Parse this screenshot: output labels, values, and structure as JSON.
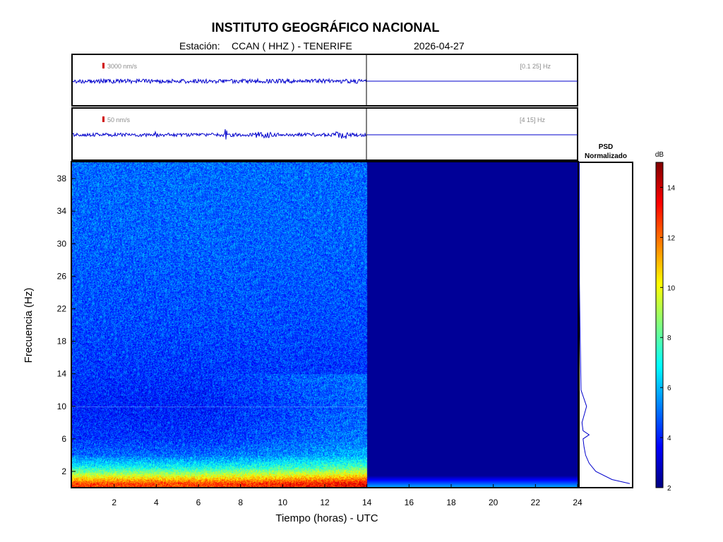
{
  "header": {
    "title": "INSTITUTO GEOGRÁFICO NACIONAL",
    "station_prefix": "Estación:",
    "station": "CCAN ( HHZ ) - TENERIFE",
    "date": "2026-04-27"
  },
  "traces": [
    {
      "scale_label": "3000 nm/s",
      "band_label": "[0.1 25] Hz"
    },
    {
      "scale_label": "50 nm/s",
      "band_label": "[4 15] Hz"
    }
  ],
  "psd": {
    "title_line1": "PSD",
    "title_line2": "Normalizado"
  },
  "colorbar": {
    "unit": "dB",
    "min": 2,
    "max": 15,
    "ticks": [
      "2",
      "4",
      "6",
      "8",
      "10",
      "12",
      "14"
    ]
  },
  "chart_data": {
    "type": "heatmap",
    "xlabel": "Tiempo (horas) - UTC",
    "ylabel": "Frecuencia  (Hz)",
    "xlim": [
      0,
      24
    ],
    "ylim": [
      0,
      40
    ],
    "x_ticks": [
      "2",
      "4",
      "6",
      "8",
      "10",
      "12",
      "14",
      "16",
      "18",
      "20",
      "22",
      "24"
    ],
    "y_ticks": [
      "2",
      "6",
      "10",
      "14",
      "18",
      "22",
      "26",
      "30",
      "34",
      "38"
    ],
    "data_end_hour": 14,
    "colormap": "jet",
    "spectrogram_levels_db": {
      "frequency_hz": [
        0.5,
        1.5,
        2.5,
        4,
        6,
        10,
        14,
        20,
        30,
        38
      ],
      "mean_db": [
        12.5,
        9.5,
        7.0,
        5.0,
        4.3,
        4.0,
        4.3,
        4.6,
        4.9,
        5.0
      ]
    },
    "psd_normalized": {
      "frequency_hz": [
        0.5,
        1,
        2,
        3,
        4,
        5,
        6,
        6.5,
        7,
        8,
        10,
        12,
        16,
        20,
        25,
        40
      ],
      "value": [
        1.0,
        0.65,
        0.33,
        0.2,
        0.13,
        0.1,
        0.08,
        0.2,
        0.08,
        0.06,
        0.15,
        0.04,
        0.03,
        0.02,
        0.01,
        0.005
      ]
    }
  }
}
